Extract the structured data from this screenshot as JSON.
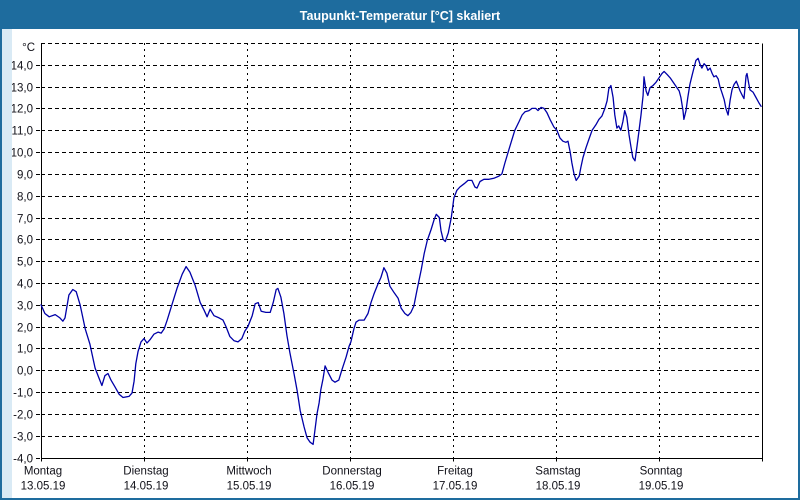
{
  "window": {
    "title": "Taupunkt-Temperatur [°C] skaliert"
  },
  "colors": {
    "titlebar_bg": "#1e6c9e",
    "titlebar_text": "#ffffff",
    "window_bg": "#d9eaf5",
    "border": "#1e6c9e",
    "panel_bg": "#ffffff",
    "grid": "#000000",
    "axis": "#000000",
    "label": "#101018",
    "line": "#0000a8"
  },
  "chart_data": {
    "type": "line",
    "title": "Taupunkt-Temperatur [°C] skaliert",
    "y_unit_label": "°C",
    "ylabel": "",
    "xlabel": "",
    "grid": true,
    "legend": "none",
    "ylim": [
      -4,
      15
    ],
    "x_hours_range": [
      0,
      168
    ],
    "y_ticks": [
      {
        "value": 14,
        "label": "14,0"
      },
      {
        "value": 13,
        "label": "13,0"
      },
      {
        "value": 12,
        "label": "12,0"
      },
      {
        "value": 11,
        "label": "11,0"
      },
      {
        "value": 10,
        "label": "10,0"
      },
      {
        "value": 9,
        "label": "9,0"
      },
      {
        "value": 8,
        "label": "8,0"
      },
      {
        "value": 7,
        "label": "7,0"
      },
      {
        "value": 6,
        "label": "6,0"
      },
      {
        "value": 5,
        "label": "5,0"
      },
      {
        "value": 4,
        "label": "4,0"
      },
      {
        "value": 3,
        "label": "3,0"
      },
      {
        "value": 2,
        "label": "2,0"
      },
      {
        "value": 1,
        "label": "1,0"
      },
      {
        "value": 0,
        "label": "0,0"
      },
      {
        "value": -1,
        "label": "-1,0"
      },
      {
        "value": -2,
        "label": "-2,0"
      },
      {
        "value": -3,
        "label": "-3,0"
      },
      {
        "value": -4,
        "label": "-4,0"
      }
    ],
    "x_days": [
      {
        "name": "Montag",
        "date": "13.05.19"
      },
      {
        "name": "Dienstag",
        "date": "14.05.19"
      },
      {
        "name": "Mittwoch",
        "date": "15.05.19"
      },
      {
        "name": "Donnerstag",
        "date": "16.05.19"
      },
      {
        "name": "Freitag",
        "date": "17.05.19"
      },
      {
        "name": "Samstag",
        "date": "18.05.19"
      },
      {
        "name": "Sonntag",
        "date": "19.05.19"
      }
    ],
    "series": [
      {
        "name": "Taupunkt",
        "color": "#0000a8",
        "points_hours_value": [
          [
            0,
            3.0
          ],
          [
            0.9,
            2.6
          ],
          [
            1.9,
            2.45
          ],
          [
            3.3,
            2.55
          ],
          [
            4.4,
            2.4
          ],
          [
            5.1,
            2.25
          ],
          [
            5.6,
            2.4
          ],
          [
            6.5,
            3.45
          ],
          [
            7.4,
            3.7
          ],
          [
            8.2,
            3.6
          ],
          [
            9.1,
            3.0
          ],
          [
            10.3,
            1.9
          ],
          [
            11.4,
            1.2
          ],
          [
            12.6,
            0.1
          ],
          [
            13.5,
            -0.35
          ],
          [
            14.2,
            -0.7
          ],
          [
            14.9,
            -0.25
          ],
          [
            15.6,
            -0.15
          ],
          [
            16.3,
            -0.45
          ],
          [
            17.2,
            -0.75
          ],
          [
            18.2,
            -1.1
          ],
          [
            19.1,
            -1.25
          ],
          [
            20.5,
            -1.2
          ],
          [
            21.2,
            -1.05
          ],
          [
            21.7,
            -0.5
          ],
          [
            22.1,
            0.3
          ],
          [
            22.6,
            0.85
          ],
          [
            23.3,
            1.3
          ],
          [
            24.0,
            1.45
          ],
          [
            24.7,
            1.25
          ],
          [
            25.4,
            1.4
          ],
          [
            26.3,
            1.65
          ],
          [
            27.3,
            1.75
          ],
          [
            28.0,
            1.7
          ],
          [
            28.7,
            1.9
          ],
          [
            29.4,
            2.3
          ],
          [
            30.5,
            3.0
          ],
          [
            31.7,
            3.75
          ],
          [
            32.9,
            4.4
          ],
          [
            33.8,
            4.75
          ],
          [
            34.7,
            4.5
          ],
          [
            35.9,
            3.9
          ],
          [
            37.1,
            3.1
          ],
          [
            38.0,
            2.75
          ],
          [
            38.7,
            2.45
          ],
          [
            39.4,
            2.8
          ],
          [
            40.3,
            2.5
          ],
          [
            41.5,
            2.4
          ],
          [
            42.4,
            2.3
          ],
          [
            43.1,
            2.0
          ],
          [
            44.0,
            1.55
          ],
          [
            45.0,
            1.35
          ],
          [
            45.9,
            1.3
          ],
          [
            46.8,
            1.45
          ],
          [
            47.5,
            1.8
          ],
          [
            48.2,
            2.0
          ],
          [
            49.2,
            2.5
          ],
          [
            49.9,
            3.05
          ],
          [
            50.6,
            3.1
          ],
          [
            51.3,
            2.7
          ],
          [
            52.4,
            2.65
          ],
          [
            53.4,
            2.65
          ],
          [
            54.1,
            3.1
          ],
          [
            54.8,
            3.7
          ],
          [
            55.2,
            3.75
          ],
          [
            55.9,
            3.35
          ],
          [
            56.6,
            2.6
          ],
          [
            57.3,
            1.6
          ],
          [
            58.0,
            0.8
          ],
          [
            59.0,
            -0.2
          ],
          [
            59.7,
            -0.95
          ],
          [
            60.4,
            -1.85
          ],
          [
            61.3,
            -2.6
          ],
          [
            62.0,
            -3.1
          ],
          [
            62.7,
            -3.3
          ],
          [
            63.4,
            -3.4
          ],
          [
            63.8,
            -2.8
          ],
          [
            64.3,
            -2.0
          ],
          [
            64.8,
            -1.5
          ],
          [
            65.2,
            -0.9
          ],
          [
            65.7,
            -0.4
          ],
          [
            66.2,
            0.2
          ],
          [
            66.9,
            -0.1
          ],
          [
            67.8,
            -0.45
          ],
          [
            68.5,
            -0.55
          ],
          [
            69.4,
            -0.45
          ],
          [
            70.1,
            0.0
          ],
          [
            71.1,
            0.6
          ],
          [
            71.8,
            1.1
          ],
          [
            72.2,
            1.3
          ],
          [
            72.9,
            1.9
          ],
          [
            73.4,
            2.2
          ],
          [
            74.1,
            2.3
          ],
          [
            75.3,
            2.3
          ],
          [
            76.2,
            2.6
          ],
          [
            76.9,
            3.1
          ],
          [
            77.6,
            3.5
          ],
          [
            78.5,
            3.95
          ],
          [
            79.2,
            4.25
          ],
          [
            79.9,
            4.7
          ],
          [
            80.6,
            4.45
          ],
          [
            81.3,
            3.85
          ],
          [
            82.3,
            3.55
          ],
          [
            83.2,
            3.3
          ],
          [
            83.9,
            2.85
          ],
          [
            84.8,
            2.6
          ],
          [
            85.5,
            2.5
          ],
          [
            86.2,
            2.65
          ],
          [
            86.9,
            2.95
          ],
          [
            87.6,
            3.65
          ],
          [
            88.6,
            4.6
          ],
          [
            89.3,
            5.35
          ],
          [
            90.0,
            5.95
          ],
          [
            90.9,
            6.45
          ],
          [
            91.6,
            6.9
          ],
          [
            92.1,
            7.15
          ],
          [
            92.8,
            7.0
          ],
          [
            93.2,
            6.4
          ],
          [
            93.7,
            6.0
          ],
          [
            94.2,
            5.9
          ],
          [
            94.9,
            6.3
          ],
          [
            95.6,
            7.0
          ],
          [
            96.2,
            7.9
          ],
          [
            96.9,
            8.25
          ],
          [
            97.6,
            8.4
          ],
          [
            98.6,
            8.55
          ],
          [
            99.5,
            8.7
          ],
          [
            100.4,
            8.7
          ],
          [
            101.1,
            8.4
          ],
          [
            101.6,
            8.35
          ],
          [
            102.3,
            8.65
          ],
          [
            103.2,
            8.75
          ],
          [
            104.4,
            8.75
          ],
          [
            105.5,
            8.8
          ],
          [
            106.7,
            8.9
          ],
          [
            107.4,
            9.0
          ],
          [
            108.1,
            9.5
          ],
          [
            109.0,
            10.1
          ],
          [
            109.7,
            10.55
          ],
          [
            110.4,
            11.0
          ],
          [
            111.4,
            11.4
          ],
          [
            112.1,
            11.7
          ],
          [
            112.8,
            11.85
          ],
          [
            113.7,
            11.9
          ],
          [
            114.4,
            12.0
          ],
          [
            115.3,
            12.0
          ],
          [
            115.8,
            11.9
          ],
          [
            116.5,
            12.05
          ],
          [
            117.2,
            12.0
          ],
          [
            117.9,
            11.8
          ],
          [
            118.6,
            11.5
          ],
          [
            119.5,
            11.15
          ],
          [
            120.2,
            11.0
          ],
          [
            120.9,
            10.65
          ],
          [
            121.6,
            10.5
          ],
          [
            122.3,
            10.45
          ],
          [
            122.8,
            10.5
          ],
          [
            123.3,
            10.0
          ],
          [
            123.7,
            9.5
          ],
          [
            124.2,
            9.0
          ],
          [
            124.7,
            8.7
          ],
          [
            125.4,
            8.9
          ],
          [
            125.8,
            9.3
          ],
          [
            126.3,
            9.75
          ],
          [
            127.0,
            10.2
          ],
          [
            127.7,
            10.6
          ],
          [
            128.4,
            11.0
          ],
          [
            129.3,
            11.25
          ],
          [
            130.0,
            11.5
          ],
          [
            130.7,
            11.65
          ],
          [
            131.4,
            12.0
          ],
          [
            131.9,
            12.35
          ],
          [
            132.3,
            12.9
          ],
          [
            132.8,
            13.05
          ],
          [
            133.3,
            12.5
          ],
          [
            133.7,
            11.7
          ],
          [
            134.2,
            11.1
          ],
          [
            134.6,
            11.2
          ],
          [
            135.1,
            11.0
          ],
          [
            135.6,
            11.4
          ],
          [
            136.0,
            11.9
          ],
          [
            136.5,
            11.6
          ],
          [
            137.0,
            10.8
          ],
          [
            137.5,
            10.2
          ],
          [
            137.9,
            9.75
          ],
          [
            138.4,
            9.6
          ],
          [
            138.9,
            10.3
          ],
          [
            139.3,
            10.9
          ],
          [
            139.8,
            11.7
          ],
          [
            140.3,
            12.6
          ],
          [
            140.5,
            13.45
          ],
          [
            141.0,
            12.8
          ],
          [
            141.4,
            12.6
          ],
          [
            141.9,
            12.95
          ],
          [
            142.6,
            13.05
          ],
          [
            143.3,
            13.2
          ],
          [
            144.0,
            13.4
          ],
          [
            144.7,
            13.6
          ],
          [
            145.2,
            13.7
          ],
          [
            145.9,
            13.55
          ],
          [
            146.6,
            13.4
          ],
          [
            147.3,
            13.2
          ],
          [
            148.0,
            13.0
          ],
          [
            148.7,
            12.8
          ],
          [
            149.1,
            12.5
          ],
          [
            149.6,
            11.9
          ],
          [
            149.8,
            11.5
          ],
          [
            150.3,
            11.9
          ],
          [
            150.7,
            12.5
          ],
          [
            151.2,
            13.1
          ],
          [
            151.7,
            13.5
          ],
          [
            152.2,
            13.9
          ],
          [
            152.6,
            14.2
          ],
          [
            153.1,
            14.3
          ],
          [
            153.6,
            14.0
          ],
          [
            154.0,
            13.85
          ],
          [
            154.5,
            14.05
          ],
          [
            155.0,
            13.95
          ],
          [
            155.4,
            13.75
          ],
          [
            155.9,
            13.85
          ],
          [
            156.4,
            13.6
          ],
          [
            156.8,
            13.45
          ],
          [
            157.3,
            13.5
          ],
          [
            157.8,
            13.35
          ],
          [
            158.2,
            13.0
          ],
          [
            158.7,
            12.7
          ],
          [
            159.2,
            12.4
          ],
          [
            159.6,
            12.0
          ],
          [
            160.1,
            11.7
          ],
          [
            160.6,
            12.4
          ],
          [
            161.0,
            12.85
          ],
          [
            161.5,
            13.1
          ],
          [
            162.0,
            13.25
          ],
          [
            162.4,
            13.05
          ],
          [
            162.9,
            12.8
          ],
          [
            163.4,
            12.6
          ],
          [
            163.8,
            12.45
          ],
          [
            164.3,
            13.5
          ],
          [
            164.5,
            13.6
          ],
          [
            164.9,
            13.15
          ],
          [
            165.2,
            12.85
          ],
          [
            165.9,
            12.75
          ],
          [
            166.6,
            12.5
          ],
          [
            167.3,
            12.25
          ],
          [
            167.8,
            12.1
          ]
        ]
      }
    ]
  }
}
